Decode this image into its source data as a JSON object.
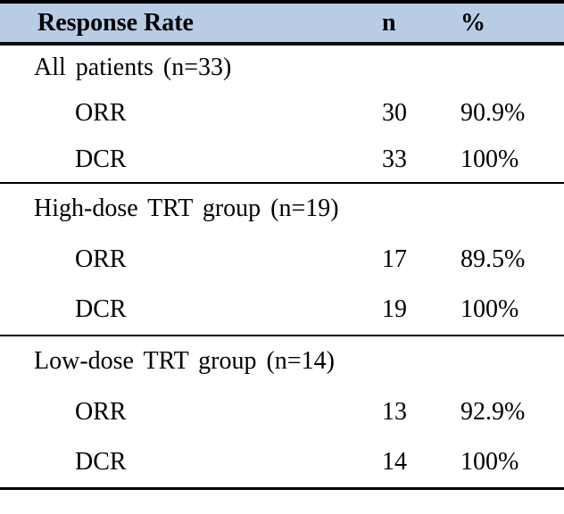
{
  "table": {
    "title_note": "Response rate table",
    "colors": {
      "header_bg": "#b8cce4",
      "border": "#000000",
      "text": "#000000"
    },
    "header": {
      "col1": "Response Rate",
      "col2": "n",
      "col3": "%"
    },
    "sections": [
      {
        "group": "All patients (n=33)",
        "rows": [
          {
            "label": "ORR",
            "n": "30",
            "pct": "90.9%"
          },
          {
            "label": "DCR",
            "n": "33",
            "pct": "100%"
          }
        ]
      },
      {
        "group": "High-dose TRT group (n=19)",
        "rows": [
          {
            "label": "ORR",
            "n": "17",
            "pct": "89.5%"
          },
          {
            "label": "DCR",
            "n": "19",
            "pct": "100%"
          }
        ]
      },
      {
        "group": "Low-dose TRT group (n=14)",
        "rows": [
          {
            "label": "ORR",
            "n": "13",
            "pct": "92.9%"
          },
          {
            "label": "DCR",
            "n": "14",
            "pct": "100%"
          }
        ]
      }
    ]
  }
}
